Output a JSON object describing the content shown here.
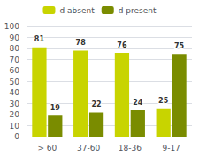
{
  "chart_data": {
    "type": "bar",
    "categories": [
      "> 60",
      "37-60",
      "18-36",
      "9-17"
    ],
    "series": [
      {
        "name": "d absent",
        "color": "#c8d400",
        "values": [
          81,
          78,
          76,
          25
        ]
      },
      {
        "name": "d present",
        "color": "#7a8c00",
        "values": [
          19,
          22,
          24,
          75
        ]
      }
    ],
    "ylim": [
      0,
      100
    ],
    "yticks": [
      0,
      10,
      20,
      30,
      40,
      50,
      60,
      70,
      80,
      90,
      100
    ],
    "grid": true,
    "legend": "top",
    "data_labels": true
  }
}
